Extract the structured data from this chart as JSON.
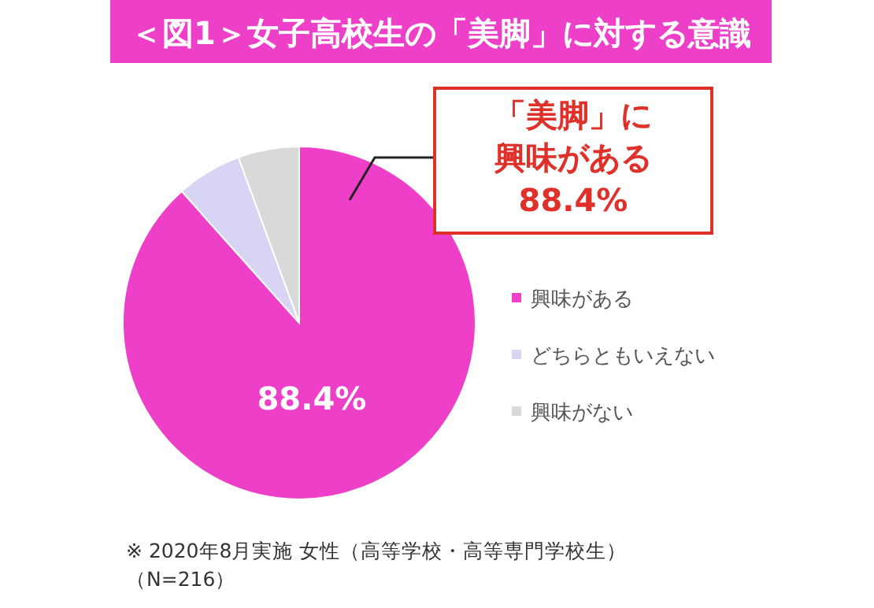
{
  "chart_data": {
    "type": "pie",
    "title": "＜図1＞女子高校生の「美脚」に対する意識",
    "categories": [
      "興味がある",
      "どちらともいえない",
      "興味がない"
    ],
    "values": [
      88.4,
      6.0,
      5.6
    ],
    "colors": [
      "#ee3fc8",
      "#d8d4f4",
      "#d9d9d9"
    ],
    "value_labels": [
      "88.4%",
      null,
      null
    ],
    "legend": "right",
    "annotations": [
      "「美脚」に興味がある88.4%",
      "※ 2020年8月実施 女性（高等学校・高等専門学校生）（N=216）"
    ]
  }
}
